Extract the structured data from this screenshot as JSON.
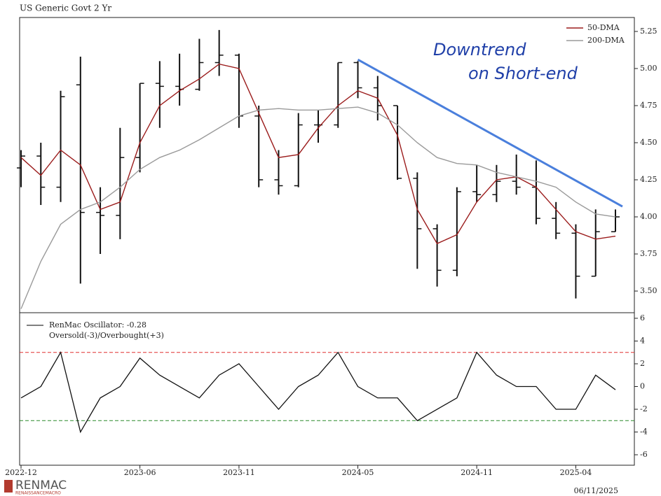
{
  "chart_data": [
    {
      "type": "ohlc",
      "title": "US Generic Govt 2 Yr",
      "x": [
        "2022-12",
        "2023-01",
        "2023-02",
        "2023-03",
        "2023-04",
        "2023-05",
        "2023-06",
        "2023-07",
        "2023-08",
        "2023-09",
        "2023-10",
        "2023-11",
        "2023-12",
        "2024-01",
        "2024-02",
        "2024-03",
        "2024-04",
        "2024-05",
        "2024-06",
        "2024-07",
        "2024-08",
        "2024-09",
        "2024-10",
        "2024-11",
        "2024-12",
        "2025-01",
        "2025-02",
        "2025-03",
        "2025-04",
        "2025-05",
        "2025-06"
      ],
      "open": [
        4.33,
        4.41,
        4.2,
        4.89,
        4.03,
        4.01,
        4.4,
        4.9,
        4.88,
        4.86,
        5.04,
        5.09,
        4.68,
        4.25,
        4.21,
        4.62,
        4.62,
        5.04,
        4.87,
        4.75,
        4.26,
        3.92,
        3.64,
        4.17,
        4.15,
        4.24,
        4.2,
        3.99,
        3.89,
        3.6,
        3.9
      ],
      "high": [
        4.45,
        4.5,
        4.85,
        5.08,
        4.2,
        4.6,
        4.9,
        5.05,
        5.1,
        5.2,
        5.26,
        5.1,
        4.75,
        4.45,
        4.7,
        4.72,
        5.04,
        5.05,
        4.95,
        4.75,
        4.3,
        3.95,
        4.2,
        4.35,
        4.35,
        4.42,
        4.38,
        4.1,
        3.95,
        4.05,
        4.05
      ],
      "low": [
        4.2,
        4.08,
        4.1,
        3.55,
        3.75,
        3.85,
        4.3,
        4.6,
        4.75,
        4.85,
        4.95,
        4.6,
        4.2,
        4.15,
        4.2,
        4.5,
        4.6,
        4.8,
        4.65,
        4.25,
        3.65,
        3.53,
        3.6,
        4.1,
        4.1,
        4.15,
        3.95,
        3.85,
        3.45,
        3.6,
        3.9
      ],
      "close": [
        4.41,
        4.2,
        4.81,
        4.03,
        4.01,
        4.4,
        4.9,
        4.88,
        4.86,
        5.04,
        5.09,
        4.68,
        4.25,
        4.21,
        4.62,
        4.62,
        5.04,
        4.87,
        4.75,
        4.26,
        3.92,
        3.64,
        4.17,
        4.15,
        4.24,
        4.2,
        3.99,
        3.89,
        3.6,
        3.9,
        4.0
      ],
      "color": "#111111",
      "series": [
        {
          "name": "50-DMA",
          "color": "#9b1c1c",
          "values": [
            4.4,
            4.28,
            4.45,
            4.35,
            4.05,
            4.1,
            4.5,
            4.75,
            4.85,
            4.93,
            5.03,
            5.0,
            4.7,
            4.4,
            4.42,
            4.6,
            4.75,
            4.85,
            4.8,
            4.55,
            4.05,
            3.82,
            3.88,
            4.1,
            4.25,
            4.27,
            4.2,
            4.05,
            3.9,
            3.85,
            3.87
          ]
        },
        {
          "name": "200-DMA",
          "color": "#9a9a9a",
          "values": [
            3.38,
            3.7,
            3.95,
            4.05,
            4.1,
            4.2,
            4.32,
            4.4,
            4.45,
            4.52,
            4.6,
            4.68,
            4.72,
            4.73,
            4.72,
            4.72,
            4.73,
            4.74,
            4.7,
            4.62,
            4.5,
            4.4,
            4.36,
            4.35,
            4.3,
            4.27,
            4.24,
            4.2,
            4.1,
            4.02,
            4.0
          ]
        }
      ],
      "trendline": {
        "x": [
          "2024-05",
          "2025-06"
        ],
        "values": [
          5.06,
          4.07
        ],
        "color": "#4a7fdc"
      },
      "annotation": [
        "Downtrend",
        "on Short-end"
      ],
      "ylim": [
        3.354,
        5.344
      ],
      "yticks": [
        {
          "value": 3.5,
          "label": "3.50"
        },
        3.75,
        {
          "value": 4,
          "label": "4.00"
        },
        4.25,
        {
          "value": 4.5,
          "label": "4.50"
        },
        4.75,
        {
          "value": 5,
          "label": "5.00"
        },
        5.25
      ],
      "legend": "upper right"
    },
    {
      "type": "line",
      "x": [
        "2022-12",
        "2023-01",
        "2023-02",
        "2023-03",
        "2023-04",
        "2023-05",
        "2023-06",
        "2023-07",
        "2023-08",
        "2023-09",
        "2023-10",
        "2023-11",
        "2023-12",
        "2024-01",
        "2024-02",
        "2024-03",
        "2024-04",
        "2024-05",
        "2024-06",
        "2024-07",
        "2024-08",
        "2024-09",
        "2024-10",
        "2024-11",
        "2024-12",
        "2025-01",
        "2025-02",
        "2025-03",
        "2025-04",
        "2025-05",
        "2025-06"
      ],
      "series": [
        {
          "name": "RenMac Oscillator: -0.28",
          "color": "#111111",
          "values": [
            -1,
            0,
            3,
            -4,
            -1,
            0,
            2.5,
            1,
            0,
            -1,
            1,
            2,
            0,
            -2,
            0,
            1,
            3,
            0,
            -1,
            -1,
            -3,
            -2,
            -1,
            3,
            1,
            0,
            0,
            -2,
            -2,
            1,
            -0.28
          ]
        }
      ],
      "note": "Oversold(-3)/Overbought(+3)",
      "hlines": [
        {
          "value": 3,
          "color": "#e03030"
        },
        {
          "value": -3,
          "color": "#2a8a2a"
        }
      ],
      "ylim": [
        -6.92,
        6.49
      ],
      "yticks": [
        -6,
        -4,
        -2,
        0,
        2,
        4,
        6
      ],
      "xticks": [
        "2022-12",
        "2023-06",
        "2023-11",
        "2024-05",
        "2024-11",
        "2025-04"
      ],
      "legend": "upper left"
    }
  ],
  "footer": {
    "logo": "RENMAC",
    "logo_sub": "RENAISSANCEMACRO",
    "date": "06/11/2025"
  }
}
